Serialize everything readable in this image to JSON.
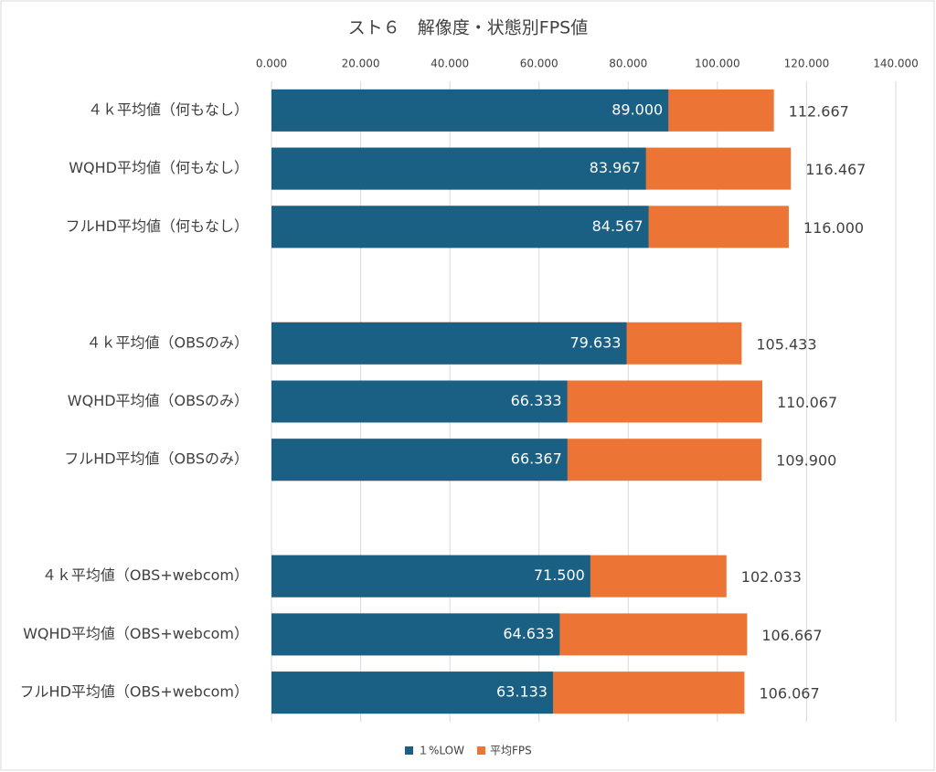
{
  "chart_data": {
    "type": "bar",
    "orientation": "horizontal",
    "overlap": true,
    "title": "スト６　解像度・状態別FPS値",
    "categories": [
      "４ｋ平均値（何もなし）",
      "WQHD平均値（何もなし）",
      "フルHD平均値（何もなし）",
      null,
      "４ｋ平均値（OBSのみ）",
      "WQHD平均値（OBSのみ）",
      "フルHD平均値（OBSのみ）",
      null,
      "４ｋ平均値（OBS+webcom）",
      "WQHD平均値（OBS+webcom）",
      "フルHD平均値（OBS+webcom）"
    ],
    "series": [
      {
        "name": "平均FPS",
        "color": "#ec7434",
        "values": [
          112.667,
          116.467,
          116.0,
          null,
          105.433,
          110.067,
          109.9,
          null,
          102.033,
          106.667,
          106.067
        ],
        "value_labels": [
          "112.667",
          "116.467",
          "116.000",
          null,
          "105.433",
          "110.067",
          "109.900",
          null,
          "102.033",
          "106.667",
          "106.067"
        ]
      },
      {
        "name": "１%LOW",
        "color": "#1a5f84",
        "values": [
          89.0,
          83.967,
          84.567,
          null,
          79.633,
          66.333,
          66.367,
          null,
          71.5,
          64.633,
          63.133
        ],
        "value_labels": [
          "89.000",
          "83.967",
          "84.567",
          null,
          "79.633",
          "66.333",
          "66.367",
          null,
          "71.500",
          "64.633",
          "63.133"
        ]
      }
    ],
    "xlim": [
      0,
      140
    ],
    "xticks": [
      {
        "value": 0,
        "label": "0.000"
      },
      {
        "value": 20,
        "label": "20.000"
      },
      {
        "value": 40,
        "label": "40.000"
      },
      {
        "value": 60,
        "label": "60.000"
      },
      {
        "value": 80,
        "label": "80.000"
      },
      {
        "value": 100,
        "label": "100.000"
      },
      {
        "value": 120,
        "label": "120.000"
      },
      {
        "value": 140,
        "label": "140.000"
      }
    ],
    "grid": true,
    "legend": "bottom"
  }
}
